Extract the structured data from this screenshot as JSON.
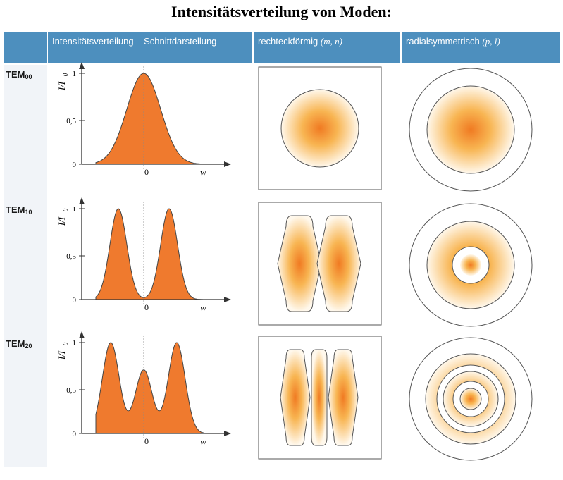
{
  "title": "Intensitätsverteilung von  Moden:",
  "header": {
    "col_profile": "Intensitätsverteilung – Schnittdarstellung",
    "col_rect_label": "rechteckförmig",
    "col_rect_vars": "(m, n)",
    "col_radial_label": "radialsymmetrisch",
    "col_radial_vars": "(p, l)"
  },
  "colors": {
    "header": "#4d8fbe",
    "fill": "#ef7a2e",
    "spot_center": "#f07a22",
    "spot_mid": "#f8b552",
    "spot_edge": "#fff8ec",
    "outline": "#555555"
  },
  "axes": {
    "y_label": "I/I",
    "y_label_sub": "0",
    "x_label": "w",
    "ticks": [
      "1",
      "0,5",
      "0"
    ],
    "x_zero": "0"
  },
  "modes": [
    {
      "name": "TEM",
      "sub": "00",
      "peaks": [
        0
      ],
      "ring_count": 0,
      "lobe_count": 1
    },
    {
      "name": "TEM",
      "sub": "10",
      "peaks": [
        -1,
        1
      ],
      "ring_count": 1,
      "lobe_count": 2
    },
    {
      "name": "TEM",
      "sub": "20",
      "peaks": [
        -1.3,
        0,
        1.3
      ],
      "ring_count": 2,
      "lobe_count": 3
    }
  ]
}
